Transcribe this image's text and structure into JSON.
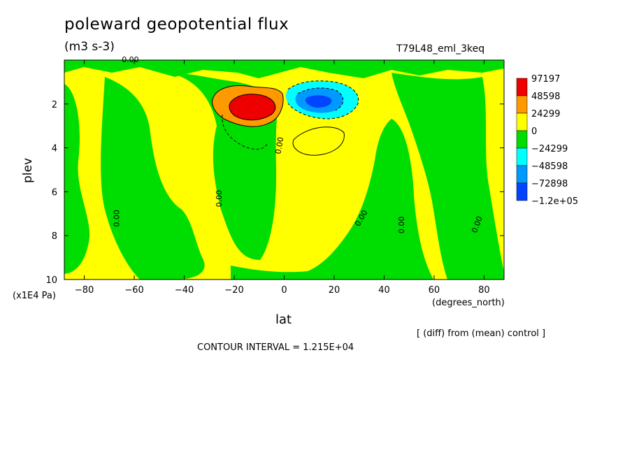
{
  "title": "poleward geopotential flux",
  "units": "(m3 s-3)",
  "run_label": "T79L48_eml_3keq",
  "difference_note": "[ (diff) from (mean) control ]",
  "contour_interval": "CONTOUR INTERVAL = 1.215E+04",
  "colors": {
    "c97197": "#ee0000",
    "c48598": "#ff9900",
    "c24299": "#ffff00",
    "c0": "#00dd00",
    "cm24299": "#00ffff",
    "cm48598": "#0099ff",
    "cm72898": "#0044ff",
    "frame": "#000000"
  },
  "chart_data": {
    "type": "contour",
    "xlabel": "lat",
    "xunits": "(degrees_north)",
    "ylabel": "plev",
    "yunits": "(x1E4 Pa)",
    "xlim": [
      -88,
      88
    ],
    "ylim": [
      10,
      0
    ],
    "xticks": [
      -80,
      -60,
      -40,
      -20,
      0,
      20,
      40,
      60,
      80
    ],
    "yticks": [
      2,
      4,
      6,
      8,
      10
    ],
    "contour_labels": [
      "0.00",
      "0.00",
      "0.00",
      "0.00",
      "0.00",
      "0.00",
      "0.00"
    ],
    "legend": {
      "position": "right",
      "levels": [
        "97197",
        "48598",
        "24299",
        "0",
        "-24299",
        "-48598",
        "-72898",
        "-1.2e+05"
      ]
    },
    "features": [
      {
        "name": "positive maximum",
        "lat": -18,
        "plev": 2.2,
        "value": 97197
      },
      {
        "name": "negative minimum",
        "lat": 12,
        "plev": 2.1,
        "value": -120000
      }
    ]
  }
}
